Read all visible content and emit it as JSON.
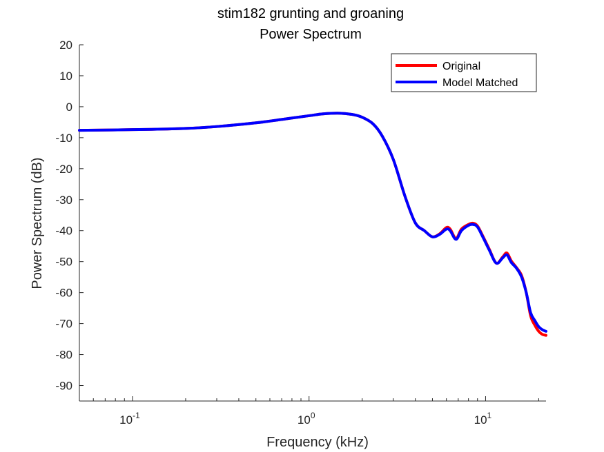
{
  "chart_data": {
    "type": "line",
    "title": "stim182 grunting and groaning",
    "subtitle": "Power Spectrum",
    "xlabel": "Frequency (kHz)",
    "ylabel": "Power Spectrum (dB)",
    "xscale": "log",
    "xlim": [
      0.05,
      22
    ],
    "ylim": [
      -95,
      20
    ],
    "x_ticks": [
      {
        "value": 0.1,
        "base": "10",
        "exp": "-1"
      },
      {
        "value": 1,
        "base": "10",
        "exp": "0"
      },
      {
        "value": 10,
        "base": "10",
        "exp": "1"
      }
    ],
    "y_ticks": [
      20,
      10,
      0,
      -10,
      -20,
      -30,
      -40,
      -50,
      -60,
      -70,
      -80,
      -90
    ],
    "grid": false,
    "legend_position": "top-right",
    "series": [
      {
        "name": "Original",
        "color": "#ff0000",
        "x": [
          0.05,
          0.1,
          0.2,
          0.3,
          0.5,
          0.7,
          1.0,
          1.2,
          1.5,
          1.8,
          2.0,
          2.3,
          2.6,
          3.0,
          3.5,
          4.0,
          4.5,
          5.0,
          5.5,
          6.0,
          6.3,
          6.8,
          7.3,
          8.0,
          8.5,
          9.0,
          9.7,
          10.5,
          11.5,
          12.5,
          13.2,
          14.0,
          15.0,
          16.0,
          17.0,
          18.0,
          19.0,
          20.0,
          21.0,
          22.0
        ],
        "values": [
          -7.6,
          -7.4,
          -7.0,
          -6.4,
          -5.2,
          -4.1,
          -2.9,
          -2.3,
          -2.1,
          -2.6,
          -3.4,
          -5.5,
          -9.5,
          -17.0,
          -29.0,
          -37.5,
          -40.0,
          -42.0,
          -41.0,
          -39.0,
          -39.5,
          -42.5,
          -39.5,
          -38.0,
          -37.6,
          -38.5,
          -42.0,
          -46.0,
          -50.5,
          -48.5,
          -47.2,
          -49.8,
          -52.0,
          -54.5,
          -60.0,
          -67.5,
          -70.5,
          -72.5,
          -73.5,
          -73.8
        ]
      },
      {
        "name": "Model Matched",
        "color": "#0000ff",
        "x": [
          0.05,
          0.1,
          0.2,
          0.3,
          0.5,
          0.7,
          1.0,
          1.2,
          1.5,
          1.8,
          2.0,
          2.3,
          2.6,
          3.0,
          3.5,
          4.0,
          4.5,
          5.0,
          5.5,
          6.0,
          6.3,
          6.8,
          7.3,
          8.0,
          8.5,
          9.0,
          9.7,
          10.5,
          11.5,
          12.5,
          13.2,
          14.0,
          15.0,
          16.0,
          17.0,
          18.0,
          19.0,
          20.0,
          21.0,
          22.0
        ],
        "values": [
          -7.6,
          -7.4,
          -7.0,
          -6.4,
          -5.2,
          -4.1,
          -2.9,
          -2.3,
          -2.1,
          -2.6,
          -3.4,
          -5.5,
          -9.5,
          -17.0,
          -29.0,
          -37.5,
          -40.0,
          -42.0,
          -41.2,
          -39.5,
          -40.0,
          -42.8,
          -40.0,
          -38.3,
          -38.0,
          -38.8,
          -42.3,
          -46.3,
          -50.5,
          -48.8,
          -47.8,
          -50.3,
          -52.2,
          -55.0,
          -60.0,
          -66.5,
          -69.0,
          -71.0,
          -72.0,
          -72.5
        ]
      }
    ]
  }
}
